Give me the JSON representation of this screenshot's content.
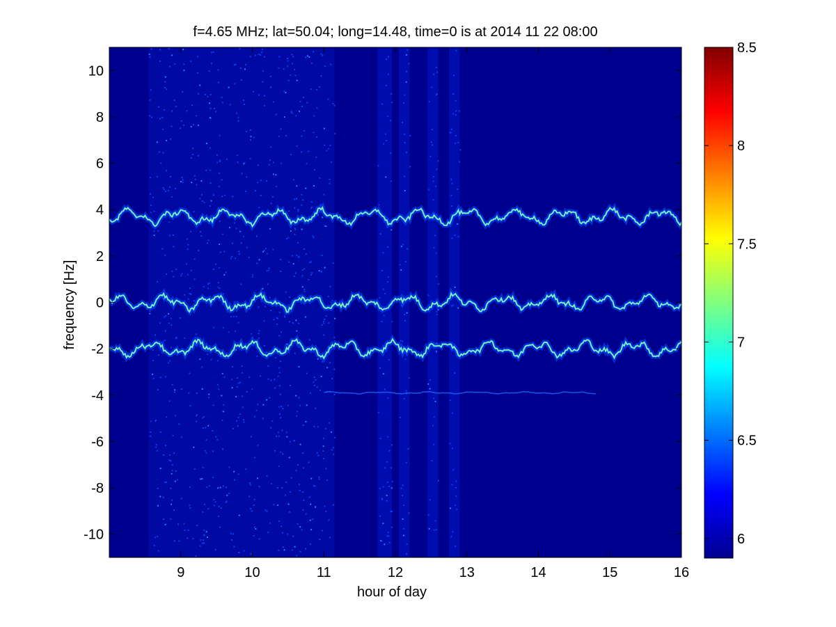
{
  "chart_data": {
    "type": "heatmap",
    "title": "f=4.65 MHz;  lat=50.04; long=14.48, time=0 is at 2014 11 22 08:00",
    "xlabel": "hour of day",
    "ylabel": "frequency [Hz]",
    "xlim": [
      8,
      16
    ],
    "ylim": [
      -11,
      11
    ],
    "xticks": [
      "9",
      "10",
      "11",
      "12",
      "13",
      "14",
      "15",
      "16"
    ],
    "yticks": [
      "10",
      "8",
      "6",
      "4",
      "2",
      "0",
      "-2",
      "-4",
      "-6",
      "-8",
      "-10"
    ],
    "colorbar": {
      "colormap": "jet",
      "range": [
        5.9,
        8.5
      ],
      "ticks": [
        "8.5",
        "8",
        "7.5",
        "7",
        "6.5",
        "6"
      ]
    },
    "grid": false,
    "background_color": "#00008f",
    "traces": [
      {
        "center_hz": 3.7,
        "start_hour": 8.0,
        "end_hour": 16.0
      },
      {
        "center_hz": 0.0,
        "start_hour": 8.0,
        "end_hour": 16.0
      },
      {
        "center_hz": -2.0,
        "start_hour": 8.0,
        "end_hour": 16.0
      },
      {
        "center_hz": -3.9,
        "start_hour": 11.0,
        "end_hour": 14.8,
        "faint": true
      }
    ],
    "noise_bands_hours": [
      [
        8.55,
        11.15
      ],
      [
        11.75,
        11.95
      ],
      [
        12.05,
        12.2
      ],
      [
        12.45,
        12.6
      ],
      [
        12.75,
        12.9
      ]
    ]
  }
}
